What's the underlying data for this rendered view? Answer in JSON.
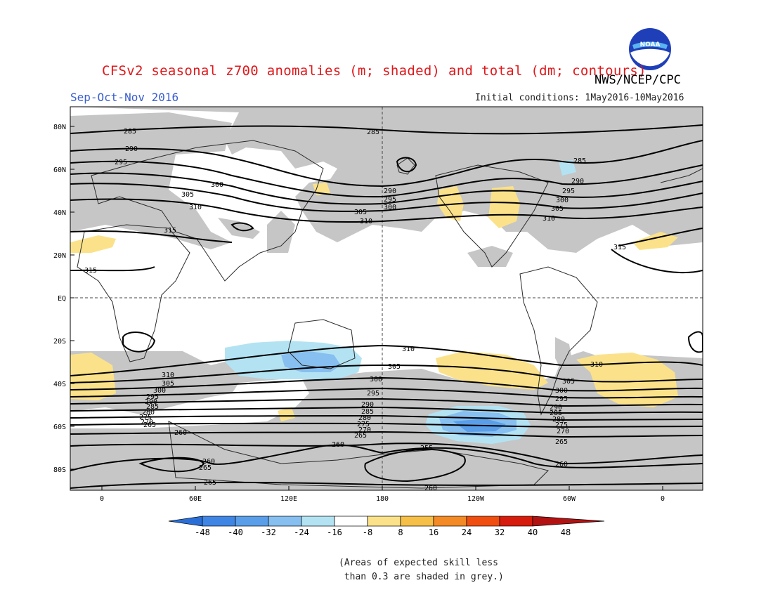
{
  "title": "CFSv2 seasonal z700 anomalies (m; shaded) and total (dm; contours)",
  "agency": "NWS/NCEP/CPC",
  "logo_text": "NOAA",
  "season": "Sep-Oct-Nov 2016",
  "initial_conditions": "Initial conditions: 1May2016-10May2016",
  "lat_labels": [
    "80N",
    "60N",
    "40N",
    "20N",
    "EQ",
    "20S",
    "40S",
    "60S",
    "80S"
  ],
  "lon_labels": [
    "0",
    "60E",
    "120E",
    "180",
    "120W",
    "60W",
    "0"
  ],
  "colorbar": {
    "labels": [
      "-48",
      "-40",
      "-32",
      "-24",
      "-16",
      "-8",
      "8",
      "16",
      "24",
      "32",
      "40",
      "48"
    ],
    "colors": [
      "#2a6fd8",
      "#3f86e4",
      "#5a9ee9",
      "#86bff0",
      "#b3e3f3",
      "#ffffff",
      "#fbe28a",
      "#f6c048",
      "#f38a25",
      "#f04e10",
      "#d61c0c",
      "#b31212"
    ]
  },
  "grey_color": "#c6c6c6",
  "note_line1": "(Areas of expected skill less",
  "note_line2": " than 0.3 are shaded in grey.)",
  "contour_labels": [
    "285",
    "285",
    "290",
    "295",
    "300",
    "305",
    "310",
    "315",
    "315",
    "290",
    "295",
    "300",
    "305",
    "310",
    "285",
    "290",
    "295",
    "300",
    "305",
    "310",
    "315",
    "310",
    "305",
    "300",
    "295",
    "290",
    "285",
    "280",
    "275",
    "270",
    "265",
    "260",
    "260",
    "265",
    "265",
    "310",
    "305",
    "300",
    "295",
    "290",
    "285",
    "280",
    "275",
    "270",
    "265",
    "260",
    "255",
    "260",
    "310",
    "305",
    "300",
    "295",
    "290",
    "285",
    "280",
    "275",
    "270",
    "265",
    "260"
  ]
}
